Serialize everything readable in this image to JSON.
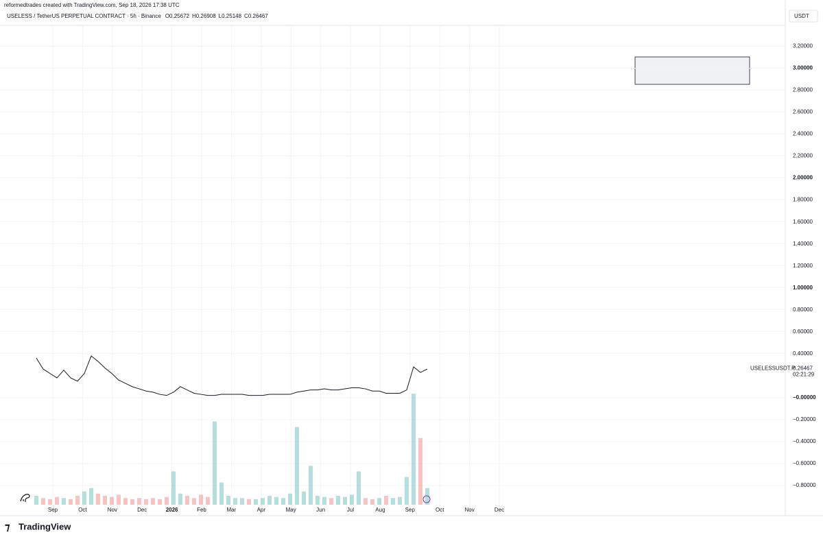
{
  "chart_data": {
    "type": "line",
    "credit": "reformedtrades created with TradingView.com, Sep 18, 2026 17:38 UTC",
    "title": "USELESS / TetherUS PERPETUAL CONTRACT · 5h · Binance",
    "ohlc": [
      "O0.25672",
      "H0.26908",
      "L0.25148",
      "C0.26467"
    ],
    "currency": "USDT",
    "symbol": "USELESSUSDT.P",
    "last_price": 0.26467,
    "countdown": "02:21:29",
    "brand": "TradingView",
    "x_labels": [
      "Sep",
      "Oct",
      "Nov",
      "Dec",
      "2026",
      "Feb",
      "Mar",
      "Apr",
      "May",
      "Jun",
      "Jul",
      "Aug",
      "Sep",
      "Oct",
      "Nov",
      "Dec"
    ],
    "color": "#131722",
    "values": [
      0.36,
      0.26,
      0.22,
      0.18,
      0.25,
      0.18,
      0.15,
      0.22,
      0.38,
      0.33,
      0.27,
      0.22,
      0.16,
      0.13,
      0.1,
      0.08,
      0.06,
      0.05,
      0.03,
      0.02,
      0.05,
      0.1,
      0.07,
      0.04,
      0.03,
      0.02,
      0.02,
      0.03,
      0.03,
      0.03,
      0.03,
      0.02,
      0.02,
      0.02,
      0.03,
      0.03,
      0.03,
      0.03,
      0.05,
      0.06,
      0.07,
      0.07,
      0.08,
      0.07,
      0.07,
      0.08,
      0.09,
      0.09,
      0.08,
      0.06,
      0.06,
      0.04,
      0.04,
      0.04,
      0.07,
      0.28,
      0.23,
      0.26
    ],
    "volume": [
      8,
      6,
      5,
      7,
      6,
      5,
      8,
      12,
      15,
      10,
      8,
      7,
      9,
      6,
      5,
      6,
      5,
      6,
      5,
      7,
      30,
      10,
      8,
      6,
      9,
      7,
      75,
      20,
      8,
      6,
      6,
      5,
      5,
      6,
      8,
      7,
      6,
      10,
      70,
      12,
      35,
      8,
      7,
      6,
      8,
      7,
      9,
      30,
      6,
      5,
      6,
      8,
      6,
      7,
      25,
      100,
      60,
      15
    ],
    "ylim": [
      -0.975,
      3.39
    ],
    "yticks": [
      {
        "value": -0.8,
        "label": "−0.80000"
      },
      {
        "value": -0.6,
        "label": "−0.60000"
      },
      {
        "value": -0.4,
        "label": "−0.40000"
      },
      {
        "value": -0.2,
        "label": "−0.20000"
      },
      {
        "value": 0,
        "label": "−0.00000"
      },
      {
        "value": 0.4,
        "label": "0.40000"
      },
      {
        "value": 0.6,
        "label": "0.60000"
      },
      {
        "value": 0.8,
        "label": "0.80000"
      },
      {
        "value": 1,
        "label": "1.00000"
      },
      {
        "value": 1.2,
        "label": "1.20000"
      },
      {
        "value": 1.4,
        "label": "1.40000"
      },
      {
        "value": 1.6,
        "label": "1.60000"
      },
      {
        "value": 1.8,
        "label": "1.80000"
      },
      {
        "value": 2,
        "label": "2.00000"
      },
      {
        "value": 2.2,
        "label": "2.20000"
      },
      {
        "value": 2.4,
        "label": "2.40000"
      },
      {
        "value": 2.6,
        "label": "2.60000"
      },
      {
        "value": 2.8,
        "label": "2.80000"
      },
      {
        "value": 3,
        "label": "3.00000"
      },
      {
        "value": 3.2,
        "label": "3.20000"
      }
    ],
    "grid": true
  }
}
